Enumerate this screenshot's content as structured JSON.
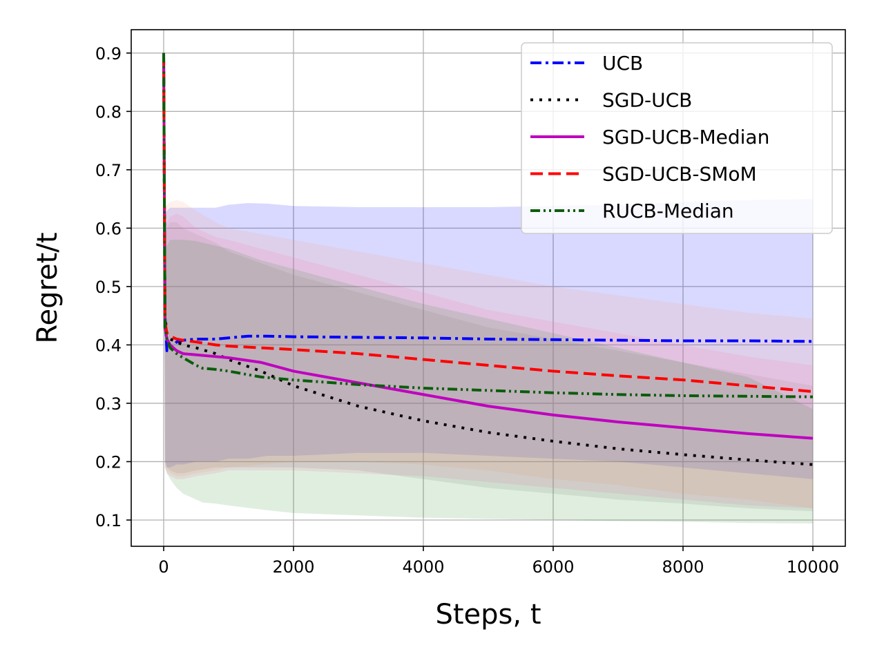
{
  "chart_data": {
    "type": "line",
    "xlabel": "Steps, t",
    "ylabel": "Regret/t",
    "xlim": [
      -500,
      10500
    ],
    "ylim": [
      0.055,
      0.94
    ],
    "xticks": [
      0,
      2000,
      4000,
      6000,
      8000,
      10000
    ],
    "xtick_labels": [
      "0",
      "2000",
      "4000",
      "6000",
      "8000",
      "10000"
    ],
    "yticks": [
      0.1,
      0.2,
      0.3,
      0.4,
      0.5,
      0.6,
      0.7,
      0.8,
      0.9
    ],
    "ytick_labels": [
      "0.1",
      "0.2",
      "0.3",
      "0.4",
      "0.5",
      "0.6",
      "0.7",
      "0.8",
      "0.9"
    ],
    "grid": true,
    "legend_position": "top-right",
    "series": [
      {
        "name": "UCB",
        "color": "#0000ff",
        "dash": "dashdot",
        "x": [
          0,
          20,
          50,
          100,
          200,
          300,
          500,
          800,
          1000,
          1300,
          1600,
          2000,
          3000,
          4000,
          5000,
          6000,
          7000,
          8000,
          9000,
          10000
        ],
        "values": [
          0.9,
          0.45,
          0.39,
          0.395,
          0.405,
          0.408,
          0.41,
          0.41,
          0.412,
          0.415,
          0.415,
          0.414,
          0.413,
          0.412,
          0.41,
          0.409,
          0.408,
          0.407,
          0.407,
          0.406
        ],
        "band_upper": [
          0.9,
          0.62,
          0.63,
          0.635,
          0.635,
          0.635,
          0.635,
          0.635,
          0.64,
          0.643,
          0.642,
          0.638,
          0.636,
          0.636,
          0.636,
          0.638,
          0.64,
          0.645,
          0.648,
          0.65
        ],
        "band_lower": [
          0.9,
          0.2,
          0.19,
          0.19,
          0.195,
          0.195,
          0.2,
          0.2,
          0.205,
          0.205,
          0.21,
          0.21,
          0.215,
          0.215,
          0.21,
          0.205,
          0.2,
          0.19,
          0.18,
          0.17
        ],
        "band_color": "#0000ff"
      },
      {
        "name": "SGD-UCB",
        "color": "#000000",
        "dash": "dotted",
        "x": [
          0,
          20,
          50,
          100,
          200,
          300,
          500,
          800,
          1000,
          1500,
          2000,
          3000,
          4000,
          5000,
          6000,
          7000,
          8000,
          9000,
          10000
        ],
        "values": [
          0.9,
          0.45,
          0.42,
          0.41,
          0.405,
          0.4,
          0.395,
          0.385,
          0.375,
          0.355,
          0.33,
          0.295,
          0.27,
          0.25,
          0.235,
          0.222,
          0.212,
          0.203,
          0.195
        ],
        "band_upper": [
          0.9,
          0.6,
          0.6,
          0.61,
          0.61,
          0.6,
          0.59,
          0.575,
          0.56,
          0.54,
          0.52,
          0.49,
          0.46,
          0.43,
          0.41,
          0.39,
          0.37,
          0.35,
          0.33
        ],
        "band_lower": [
          0.9,
          0.2,
          0.19,
          0.185,
          0.18,
          0.18,
          0.185,
          0.19,
          0.19,
          0.19,
          0.19,
          0.185,
          0.17,
          0.155,
          0.145,
          0.135,
          0.128,
          0.12,
          0.115
        ],
        "band_color": "#808080"
      },
      {
        "name": "SGD-UCB-Median",
        "color": "#bf00bf",
        "dash": "solid",
        "x": [
          0,
          20,
          50,
          100,
          200,
          300,
          500,
          800,
          1000,
          1500,
          2000,
          3000,
          4000,
          5000,
          6000,
          7000,
          8000,
          9000,
          10000
        ],
        "values": [
          0.9,
          0.43,
          0.41,
          0.4,
          0.39,
          0.385,
          0.383,
          0.38,
          0.378,
          0.37,
          0.355,
          0.335,
          0.315,
          0.295,
          0.28,
          0.268,
          0.258,
          0.248,
          0.24
        ],
        "band_upper": [
          0.9,
          0.6,
          0.61,
          0.62,
          0.625,
          0.62,
          0.6,
          0.585,
          0.58,
          0.565,
          0.55,
          0.52,
          0.49,
          0.46,
          0.44,
          0.42,
          0.4,
          0.38,
          0.365
        ],
        "band_lower": [
          0.9,
          0.19,
          0.18,
          0.175,
          0.17,
          0.17,
          0.175,
          0.18,
          0.185,
          0.185,
          0.185,
          0.18,
          0.175,
          0.165,
          0.155,
          0.145,
          0.135,
          0.125,
          0.12
        ],
        "band_color": "#ff69b4"
      },
      {
        "name": "SGD-UCB-SMoM",
        "color": "#ff0000",
        "dash": "dashed",
        "x": [
          0,
          20,
          50,
          100,
          200,
          300,
          500,
          800,
          1000,
          2000,
          3000,
          4000,
          5000,
          6000,
          7000,
          8000,
          9000,
          10000
        ],
        "values": [
          0.9,
          0.44,
          0.42,
          0.415,
          0.41,
          0.408,
          0.405,
          0.4,
          0.398,
          0.392,
          0.385,
          0.375,
          0.365,
          0.355,
          0.347,
          0.34,
          0.33,
          0.32
        ],
        "band_upper": [
          0.9,
          0.63,
          0.64,
          0.645,
          0.648,
          0.645,
          0.63,
          0.61,
          0.6,
          0.58,
          0.56,
          0.54,
          0.52,
          0.5,
          0.485,
          0.47,
          0.455,
          0.445
        ],
        "band_lower": [
          0.9,
          0.19,
          0.185,
          0.18,
          0.175,
          0.175,
          0.18,
          0.185,
          0.19,
          0.2,
          0.2,
          0.195,
          0.185,
          0.17,
          0.16,
          0.145,
          0.135,
          0.12
        ],
        "band_color": "#ffa07a"
      },
      {
        "name": "RUCB-Median",
        "color": "#0b5d0b",
        "dash": "dashdotdot",
        "x": [
          0,
          20,
          50,
          100,
          200,
          300,
          500,
          600,
          800,
          1000,
          1500,
          2000,
          3000,
          4000,
          5000,
          6000,
          7000,
          8000,
          9000,
          10000
        ],
        "values": [
          0.9,
          0.43,
          0.41,
          0.395,
          0.385,
          0.378,
          0.365,
          0.36,
          0.358,
          0.355,
          0.345,
          0.34,
          0.332,
          0.326,
          0.322,
          0.318,
          0.315,
          0.313,
          0.312,
          0.311
        ],
        "band_upper": [
          0.9,
          0.56,
          0.57,
          0.58,
          0.58,
          0.58,
          0.578,
          0.575,
          0.57,
          0.565,
          0.545,
          0.53,
          0.5,
          0.47,
          0.445,
          0.42,
          0.395,
          0.37,
          0.345,
          0.29
        ],
        "band_lower": [
          0.9,
          0.19,
          0.18,
          0.17,
          0.155,
          0.145,
          0.135,
          0.13,
          0.128,
          0.125,
          0.118,
          0.112,
          0.108,
          0.104,
          0.102,
          0.1,
          0.098,
          0.097,
          0.095,
          0.094
        ],
        "band_color": "#2e8b2e"
      }
    ]
  }
}
